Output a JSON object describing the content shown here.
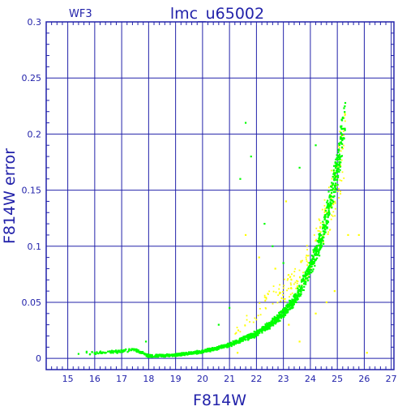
{
  "chart_data": {
    "type": "scatter",
    "title": "lmc_u65002",
    "tag": "WF3",
    "xlabel": "F814W",
    "ylabel": "F814W error",
    "xlim": [
      14.2,
      27.1
    ],
    "ylim": [
      -0.01,
      0.3
    ],
    "x_ticks": [
      15,
      16,
      17,
      18,
      19,
      20,
      21,
      22,
      23,
      24,
      25,
      26,
      27
    ],
    "y_ticks": [
      0,
      0.05,
      0.1,
      0.15,
      0.2,
      0.25,
      0.3
    ],
    "y_tick_labels": [
      "0",
      "0.05",
      "0.1",
      "0.15",
      "0.2",
      "0.25",
      "0.3"
    ],
    "grid": true,
    "legend": "none",
    "series": [
      {
        "color": "#00ff00",
        "curve_points": [
          [
            15.5,
            0.004
          ],
          [
            16.8,
            0.006
          ],
          [
            17.5,
            0.008
          ],
          [
            18.0,
            0.002
          ],
          [
            19.0,
            0.003
          ],
          [
            20.0,
            0.006
          ],
          [
            21.0,
            0.012
          ],
          [
            22.0,
            0.022
          ],
          [
            22.5,
            0.03
          ],
          [
            23.0,
            0.04
          ],
          [
            23.5,
            0.055
          ],
          [
            24.0,
            0.08
          ],
          [
            24.5,
            0.115
          ],
          [
            25.0,
            0.17
          ],
          [
            25.3,
            0.215
          ]
        ],
        "outlier_points": [
          [
            15.4,
            0.004
          ],
          [
            15.7,
            0.006
          ],
          [
            17.9,
            0.015
          ],
          [
            21.4,
            0.16
          ],
          [
            21.6,
            0.21
          ],
          [
            21.8,
            0.18
          ],
          [
            22.3,
            0.12
          ],
          [
            22.6,
            0.1
          ],
          [
            23.0,
            0.085
          ],
          [
            23.6,
            0.17
          ],
          [
            24.2,
            0.19
          ],
          [
            21.0,
            0.045
          ],
          [
            20.6,
            0.03
          ]
        ]
      },
      {
        "color": "#ffff00",
        "curve_points": [
          [
            21.0,
            0.02
          ],
          [
            22.0,
            0.04
          ],
          [
            22.5,
            0.055
          ],
          [
            23.0,
            0.06
          ],
          [
            23.5,
            0.07
          ],
          [
            24.0,
            0.09
          ],
          [
            24.5,
            0.12
          ],
          [
            25.0,
            0.16
          ],
          [
            25.3,
            0.2
          ]
        ],
        "outlier_points": [
          [
            21.6,
            0.11
          ],
          [
            22.1,
            0.09
          ],
          [
            22.7,
            0.08
          ],
          [
            23.2,
            0.03
          ],
          [
            23.6,
            0.015
          ],
          [
            24.2,
            0.04
          ],
          [
            24.6,
            0.05
          ],
          [
            25.4,
            0.11
          ],
          [
            26.1,
            0.005
          ],
          [
            25.8,
            0.11
          ],
          [
            24.9,
            0.06
          ],
          [
            23.1,
            0.14
          ],
          [
            21.3,
            0.005
          ]
        ]
      }
    ]
  }
}
